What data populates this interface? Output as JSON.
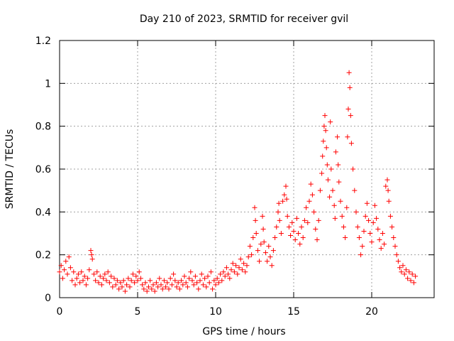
{
  "chart_data": {
    "type": "scatter",
    "title": "Day 210 of 2023, SRMTID for receiver gvil",
    "xlabel": "GPS time / hours",
    "ylabel": "SRMTID / TECUs",
    "xlim": [
      0,
      24
    ],
    "ylim": [
      0,
      1.2
    ],
    "x_ticks": [
      0,
      5,
      10,
      15,
      20
    ],
    "x_tick_labels": [
      "0",
      "5",
      "10",
      "15",
      "20"
    ],
    "y_ticks": [
      0,
      0.2,
      0.4,
      0.6,
      0.8,
      1.0,
      1.2
    ],
    "y_tick_labels": [
      "0",
      "0.2",
      "0.4",
      "0.6",
      "0.8",
      "1",
      "1.2"
    ],
    "grid": true,
    "marker": "+",
    "color": "#ff0000",
    "series": [
      {
        "name": "SRMTID",
        "points": [
          [
            0.0,
            0.12
          ],
          [
            0.1,
            0.15
          ],
          [
            0.2,
            0.09
          ],
          [
            0.3,
            0.13
          ],
          [
            0.4,
            0.17
          ],
          [
            0.5,
            0.11
          ],
          [
            0.6,
            0.19
          ],
          [
            0.7,
            0.14
          ],
          [
            0.8,
            0.08
          ],
          [
            0.9,
            0.12
          ],
          [
            1.0,
            0.06
          ],
          [
            1.1,
            0.09
          ],
          [
            1.2,
            0.11
          ],
          [
            1.3,
            0.07
          ],
          [
            1.4,
            0.12
          ],
          [
            1.5,
            0.08
          ],
          [
            1.6,
            0.1
          ],
          [
            1.7,
            0.06
          ],
          [
            1.8,
            0.09
          ],
          [
            1.9,
            0.13
          ],
          [
            2.0,
            0.22
          ],
          [
            2.05,
            0.2
          ],
          [
            2.1,
            0.18
          ],
          [
            2.2,
            0.11
          ],
          [
            2.3,
            0.08
          ],
          [
            2.4,
            0.12
          ],
          [
            2.5,
            0.07
          ],
          [
            2.6,
            0.1
          ],
          [
            2.7,
            0.06
          ],
          [
            2.8,
            0.09
          ],
          [
            2.9,
            0.11
          ],
          [
            3.0,
            0.08
          ],
          [
            3.1,
            0.12
          ],
          [
            3.2,
            0.07
          ],
          [
            3.3,
            0.1
          ],
          [
            3.4,
            0.05
          ],
          [
            3.5,
            0.09
          ],
          [
            3.6,
            0.06
          ],
          [
            3.7,
            0.08
          ],
          [
            3.8,
            0.04
          ],
          [
            3.9,
            0.07
          ],
          [
            4.0,
            0.05
          ],
          [
            4.1,
            0.08
          ],
          [
            4.2,
            0.03
          ],
          [
            4.3,
            0.06
          ],
          [
            4.4,
            0.09
          ],
          [
            4.5,
            0.05
          ],
          [
            4.6,
            0.08
          ],
          [
            4.7,
            0.11
          ],
          [
            4.8,
            0.07
          ],
          [
            4.9,
            0.1
          ],
          [
            5.0,
            0.08
          ],
          [
            5.1,
            0.12
          ],
          [
            5.2,
            0.09
          ],
          [
            5.3,
            0.06
          ],
          [
            5.4,
            0.04
          ],
          [
            5.5,
            0.07
          ],
          [
            5.6,
            0.03
          ],
          [
            5.7,
            0.05
          ],
          [
            5.8,
            0.08
          ],
          [
            5.9,
            0.04
          ],
          [
            6.0,
            0.06
          ],
          [
            6.1,
            0.03
          ],
          [
            6.2,
            0.07
          ],
          [
            6.3,
            0.05
          ],
          [
            6.4,
            0.09
          ],
          [
            6.5,
            0.06
          ],
          [
            6.6,
            0.04
          ],
          [
            6.7,
            0.08
          ],
          [
            6.8,
            0.05
          ],
          [
            6.9,
            0.07
          ],
          [
            7.0,
            0.04
          ],
          [
            7.1,
            0.09
          ],
          [
            7.2,
            0.06
          ],
          [
            7.3,
            0.11
          ],
          [
            7.4,
            0.08
          ],
          [
            7.5,
            0.05
          ],
          [
            7.6,
            0.07
          ],
          [
            7.7,
            0.04
          ],
          [
            7.8,
            0.08
          ],
          [
            7.9,
            0.06
          ],
          [
            8.0,
            0.1
          ],
          [
            8.1,
            0.07
          ],
          [
            8.2,
            0.05
          ],
          [
            8.3,
            0.09
          ],
          [
            8.4,
            0.12
          ],
          [
            8.5,
            0.08
          ],
          [
            8.6,
            0.06
          ],
          [
            8.7,
            0.1
          ],
          [
            8.8,
            0.07
          ],
          [
            8.9,
            0.04
          ],
          [
            9.0,
            0.08
          ],
          [
            9.1,
            0.11
          ],
          [
            9.2,
            0.06
          ],
          [
            9.3,
            0.09
          ],
          [
            9.4,
            0.05
          ],
          [
            9.5,
            0.1
          ],
          [
            9.6,
            0.07
          ],
          [
            9.7,
            0.12
          ],
          [
            9.8,
            0.04
          ],
          [
            9.9,
            0.08
          ],
          [
            10.0,
            0.06
          ],
          [
            10.1,
            0.09
          ],
          [
            10.2,
            0.07
          ],
          [
            10.3,
            0.11
          ],
          [
            10.4,
            0.08
          ],
          [
            10.5,
            0.12
          ],
          [
            10.6,
            0.1
          ],
          [
            10.7,
            0.14
          ],
          [
            10.8,
            0.11
          ],
          [
            10.9,
            0.09
          ],
          [
            11.0,
            0.13
          ],
          [
            11.1,
            0.16
          ],
          [
            11.2,
            0.12
          ],
          [
            11.3,
            0.15
          ],
          [
            11.4,
            0.11
          ],
          [
            11.5,
            0.14
          ],
          [
            11.6,
            0.18
          ],
          [
            11.7,
            0.13
          ],
          [
            11.8,
            0.16
          ],
          [
            11.9,
            0.12
          ],
          [
            12.0,
            0.15
          ],
          [
            12.1,
            0.19
          ],
          [
            12.2,
            0.24
          ],
          [
            12.3,
            0.2
          ],
          [
            12.4,
            0.28
          ],
          [
            12.5,
            0.42
          ],
          [
            12.55,
            0.36
          ],
          [
            12.6,
            0.3
          ],
          [
            12.7,
            0.22
          ],
          [
            12.8,
            0.17
          ],
          [
            12.9,
            0.25
          ],
          [
            13.0,
            0.38
          ],
          [
            13.05,
            0.32
          ],
          [
            13.1,
            0.26
          ],
          [
            13.2,
            0.21
          ],
          [
            13.3,
            0.17
          ],
          [
            13.4,
            0.24
          ],
          [
            13.5,
            0.19
          ],
          [
            13.6,
            0.15
          ],
          [
            13.7,
            0.22
          ],
          [
            13.8,
            0.28
          ],
          [
            13.9,
            0.33
          ],
          [
            14.0,
            0.4
          ],
          [
            14.05,
            0.44
          ],
          [
            14.1,
            0.36
          ],
          [
            14.2,
            0.3
          ],
          [
            14.3,
            0.45
          ],
          [
            14.4,
            0.48
          ],
          [
            14.5,
            0.52
          ],
          [
            14.55,
            0.46
          ],
          [
            14.6,
            0.38
          ],
          [
            14.7,
            0.33
          ],
          [
            14.8,
            0.29
          ],
          [
            14.9,
            0.35
          ],
          [
            15.0,
            0.31
          ],
          [
            15.1,
            0.27
          ],
          [
            15.2,
            0.37
          ],
          [
            15.3,
            0.3
          ],
          [
            15.4,
            0.25
          ],
          [
            15.5,
            0.33
          ],
          [
            15.6,
            0.28
          ],
          [
            15.7,
            0.36
          ],
          [
            15.8,
            0.42
          ],
          [
            15.9,
            0.35
          ],
          [
            16.0,
            0.45
          ],
          [
            16.1,
            0.53
          ],
          [
            16.2,
            0.48
          ],
          [
            16.3,
            0.4
          ],
          [
            16.4,
            0.32
          ],
          [
            16.5,
            0.27
          ],
          [
            16.6,
            0.36
          ],
          [
            16.7,
            0.5
          ],
          [
            16.8,
            0.58
          ],
          [
            16.85,
            0.66
          ],
          [
            16.9,
            0.73
          ],
          [
            16.95,
            0.8
          ],
          [
            17.0,
            0.85
          ],
          [
            17.05,
            0.78
          ],
          [
            17.1,
            0.7
          ],
          [
            17.15,
            0.62
          ],
          [
            17.2,
            0.55
          ],
          [
            17.3,
            0.47
          ],
          [
            17.35,
            0.82
          ],
          [
            17.4,
            0.6
          ],
          [
            17.5,
            0.5
          ],
          [
            17.6,
            0.43
          ],
          [
            17.65,
            0.37
          ],
          [
            17.7,
            0.68
          ],
          [
            17.8,
            0.75
          ],
          [
            17.85,
            0.62
          ],
          [
            17.9,
            0.54
          ],
          [
            18.0,
            0.45
          ],
          [
            18.1,
            0.38
          ],
          [
            18.2,
            0.33
          ],
          [
            18.3,
            0.28
          ],
          [
            18.4,
            0.42
          ],
          [
            18.45,
            0.75
          ],
          [
            18.5,
            0.88
          ],
          [
            18.55,
            1.05
          ],
          [
            18.6,
            0.98
          ],
          [
            18.65,
            0.85
          ],
          [
            18.7,
            0.72
          ],
          [
            18.8,
            0.6
          ],
          [
            18.9,
            0.5
          ],
          [
            19.0,
            0.4
          ],
          [
            19.1,
            0.33
          ],
          [
            19.2,
            0.28
          ],
          [
            19.3,
            0.2
          ],
          [
            19.4,
            0.24
          ],
          [
            19.5,
            0.31
          ],
          [
            19.6,
            0.38
          ],
          [
            19.7,
            0.44
          ],
          [
            19.8,
            0.36
          ],
          [
            19.9,
            0.3
          ],
          [
            20.0,
            0.26
          ],
          [
            20.1,
            0.35
          ],
          [
            20.2,
            0.43
          ],
          [
            20.3,
            0.37
          ],
          [
            20.4,
            0.32
          ],
          [
            20.5,
            0.27
          ],
          [
            20.6,
            0.23
          ],
          [
            20.7,
            0.3
          ],
          [
            20.8,
            0.25
          ],
          [
            20.9,
            0.52
          ],
          [
            21.0,
            0.55
          ],
          [
            21.05,
            0.5
          ],
          [
            21.1,
            0.45
          ],
          [
            21.2,
            0.38
          ],
          [
            21.3,
            0.33
          ],
          [
            21.4,
            0.28
          ],
          [
            21.5,
            0.24
          ],
          [
            21.6,
            0.2
          ],
          [
            21.7,
            0.17
          ],
          [
            21.8,
            0.14
          ],
          [
            21.9,
            0.12
          ],
          [
            22.0,
            0.15
          ],
          [
            22.1,
            0.11
          ],
          [
            22.2,
            0.13
          ],
          [
            22.3,
            0.09
          ],
          [
            22.4,
            0.12
          ],
          [
            22.5,
            0.08
          ],
          [
            22.6,
            0.11
          ],
          [
            22.7,
            0.07
          ],
          [
            22.8,
            0.1
          ]
        ]
      }
    ]
  }
}
